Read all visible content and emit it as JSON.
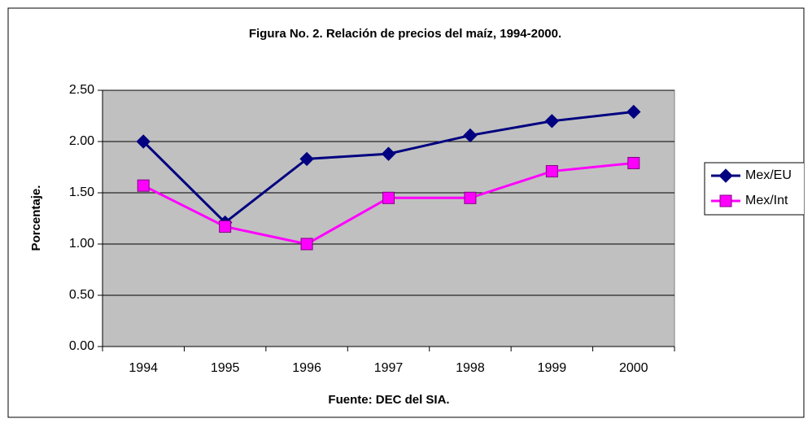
{
  "chart_data": {
    "type": "line",
    "title": "Figura No. 2. Relación de precios del maíz, 1994-2000.",
    "y_label": "Porcentaje.",
    "x_label": "Fuente: DEC del SIA.",
    "categories": [
      "1994",
      "1995",
      "1996",
      "1997",
      "1998",
      "1999",
      "2000"
    ],
    "series": [
      {
        "name": "Mex/EU",
        "color": "#000080",
        "marker": "diamond",
        "values": [
          2.0,
          1.21,
          1.83,
          1.88,
          2.06,
          2.2,
          2.29
        ]
      },
      {
        "name": "Mex/Int",
        "color": "#ff00ff",
        "marker": "square",
        "values": [
          1.57,
          1.17,
          1.0,
          1.45,
          1.45,
          1.71,
          1.79
        ]
      }
    ],
    "ylim": [
      0,
      2.5
    ],
    "yticks": [
      {
        "value": 0,
        "label": "0.00"
      },
      {
        "value": 0.5,
        "label": "0.50"
      },
      {
        "value": 1,
        "label": "1.00"
      },
      {
        "value": 1.5,
        "label": "1.50"
      },
      {
        "value": 2,
        "label": "2.00"
      },
      {
        "value": 2.5,
        "label": "2.50"
      }
    ],
    "grid": true,
    "plot_background": "#c0c0c0",
    "legend": "right"
  }
}
